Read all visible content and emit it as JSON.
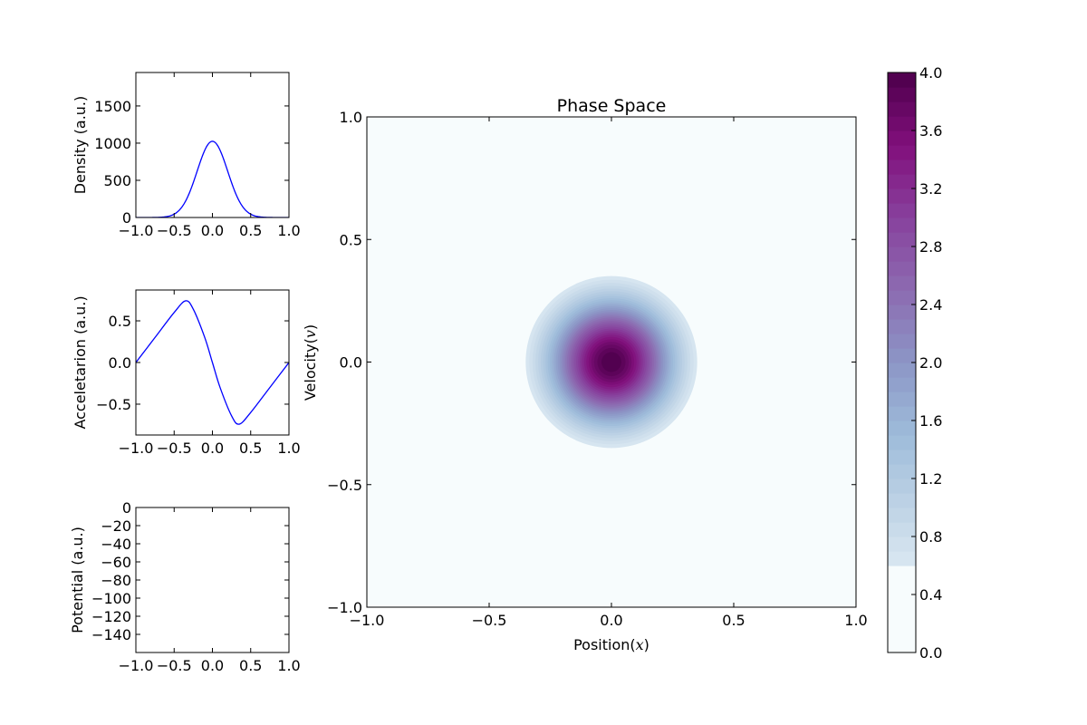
{
  "chart_data": [
    {
      "id": "density",
      "type": "line",
      "xlim": [
        -1.0,
        1.0
      ],
      "ylim": [
        0,
        1950
      ],
      "xticks": [
        -1.0,
        -0.5,
        0.0,
        0.5,
        1.0
      ],
      "xtick_labels": [
        "−1.0",
        "−0.5",
        "0.0",
        "0.5",
        "1.0"
      ],
      "yticks": [
        0,
        500,
        1000,
        1500
      ],
      "ytick_labels": [
        "0",
        "500",
        "1000",
        "1500"
      ],
      "xlabel": "",
      "ylabel": "Density (a.u.)",
      "color": "#0000ff",
      "curve": {
        "form": "gaussian",
        "amplitude": 1025,
        "sigma": 0.2,
        "center": 0.0
      },
      "x": [
        -1.0,
        -0.75,
        -0.5,
        -0.25,
        0.0,
        0.25,
        0.5,
        0.75,
        1.0
      ],
      "y": [
        0,
        0,
        0,
        470,
        1025,
        470,
        0,
        0,
        0
      ]
    },
    {
      "id": "acceleration",
      "type": "line",
      "xlim": [
        -1.0,
        1.0
      ],
      "ylim": [
        -0.87,
        0.87
      ],
      "xticks": [
        -1.0,
        -0.5,
        0.0,
        0.5,
        1.0
      ],
      "xtick_labels": [
        "−1.0",
        "−0.5",
        "0.0",
        "0.5",
        "1.0"
      ],
      "yticks": [
        -0.5,
        0.0,
        0.5
      ],
      "ytick_labels": [
        "−0.5",
        "0.0",
        "0.5"
      ],
      "xlabel": "",
      "ylabel": "Acceletarion (a.u.)",
      "color": "#0000ff",
      "x": [
        -1.0,
        -0.75,
        -0.5,
        -0.35,
        -0.25,
        -0.1,
        0.0,
        0.1,
        0.25,
        0.35,
        0.5,
        0.75,
        1.0
      ],
      "y": [
        0.0,
        0.3,
        0.6,
        0.74,
        0.64,
        0.3,
        0.0,
        -0.3,
        -0.64,
        -0.74,
        -0.6,
        -0.3,
        0.0
      ]
    },
    {
      "id": "potential",
      "type": "line",
      "xlim": [
        -1.0,
        1.0
      ],
      "ylim": [
        -160,
        0
      ],
      "xticks": [
        -1.0,
        -0.5,
        0.0,
        0.5,
        1.0
      ],
      "xtick_labels": [
        "−1.0",
        "−0.5",
        "0.0",
        "0.5",
        "1.0"
      ],
      "yticks": [
        0,
        -20,
        -40,
        -60,
        -80,
        -100,
        -120,
        -140
      ],
      "ytick_labels": [
        "0",
        "−20",
        "−40",
        "−60",
        "−80",
        "−100",
        "−120",
        "−140"
      ],
      "xlabel": "",
      "ylabel": "Potential (a.u.)"
    },
    {
      "id": "phase",
      "type": "heatmap",
      "title": "Phase Space",
      "xlabel_text": "Position",
      "xlabel_var": "x",
      "ylabel_text": "Velocity",
      "ylabel_var": "v",
      "xlim": [
        -1.0,
        1.0
      ],
      "ylim": [
        -1.0,
        1.0
      ],
      "xticks": [
        -1.0,
        -0.5,
        0.0,
        0.5,
        1.0
      ],
      "xtick_labels": [
        "−1.0",
        "−0.5",
        "0.0",
        "0.5",
        "1.0"
      ],
      "yticks": [
        -1.0,
        -0.5,
        0.0,
        0.5,
        1.0
      ],
      "ytick_labels": [
        "−1.0",
        "−0.5",
        "0.0",
        "0.5",
        "1.0"
      ],
      "blob": {
        "center": [
          0.0,
          0.0
        ],
        "peak": 4.0,
        "sigma": 0.18,
        "cutoff": 0.6
      },
      "colorbar": {
        "range": [
          0.0,
          4.0
        ],
        "ticks": [
          0.0,
          0.4,
          0.8,
          1.2,
          1.6,
          2.0,
          2.4,
          2.8,
          3.2,
          3.6,
          4.0
        ],
        "tick_labels": [
          "0.0",
          "0.4",
          "0.8",
          "1.2",
          "1.6",
          "2.0",
          "2.4",
          "2.8",
          "3.2",
          "3.6",
          "4.0"
        ],
        "levels": 40,
        "colormap": [
          "#f7fcfd",
          "#e0ecf4",
          "#bfd3e6",
          "#9ebcda",
          "#8c96c6",
          "#8c6bb1",
          "#88419d",
          "#810f7c",
          "#4d004b"
        ]
      }
    }
  ]
}
